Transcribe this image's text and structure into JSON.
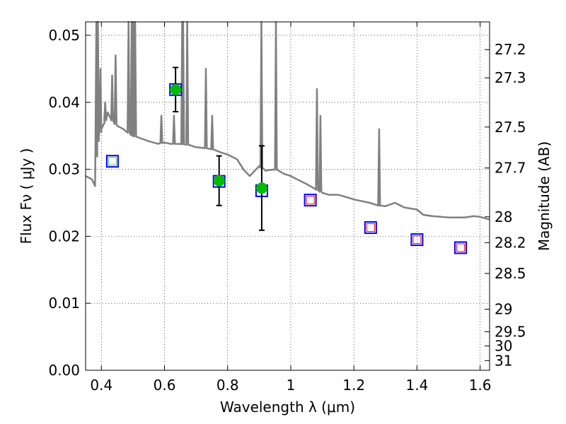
{
  "chart_data": {
    "type": "scatter",
    "xlabel": "Wavelength  λ (μm)",
    "ylabel": "Flux  Fν  ( μJy )",
    "y2label": "Magnitude (AB)",
    "xlim": [
      0.35,
      1.63
    ],
    "ylim": [
      0.0,
      0.052
    ],
    "grid": true,
    "x_ticks": [
      {
        "value": 0.4,
        "label": "0.4"
      },
      {
        "value": 0.6,
        "label": "0.6"
      },
      {
        "value": 0.8,
        "label": "0.8"
      },
      {
        "value": 1.0,
        "label": "1"
      },
      {
        "value": 1.2,
        "label": "1.2"
      },
      {
        "value": 1.4,
        "label": "1.4"
      },
      {
        "value": 1.6,
        "label": "1.6"
      }
    ],
    "y_ticks": [
      {
        "value": 0.0,
        "label": "0.00"
      },
      {
        "value": 0.01,
        "label": "0.01"
      },
      {
        "value": 0.02,
        "label": "0.02"
      },
      {
        "value": 0.03,
        "label": "0.03"
      },
      {
        "value": 0.04,
        "label": "0.04"
      },
      {
        "value": 0.05,
        "label": "0.05"
      }
    ],
    "magnitude_ticks": [
      {
        "mag": 27.2,
        "label": "27.2"
      },
      {
        "mag": 27.3,
        "label": "27.3"
      },
      {
        "mag": 27.5,
        "label": "27.5"
      },
      {
        "mag": 27.7,
        "label": "27.7"
      },
      {
        "mag": 28.0,
        "label": "28"
      },
      {
        "mag": 28.2,
        "label": "28.2"
      },
      {
        "mag": 28.5,
        "label": "28.5"
      },
      {
        "mag": 29.0,
        "label": "29"
      },
      {
        "mag": 29.5,
        "label": "29.5"
      },
      {
        "mag": 30.0,
        "label": "30"
      },
      {
        "mag": 31.0,
        "label": "31"
      }
    ],
    "series": [
      {
        "kind": "model_spectrum",
        "color": "#808080",
        "continuum": [
          [
            0.35,
            0.029
          ],
          [
            0.37,
            0.0285
          ],
          [
            0.38,
            0.0275
          ],
          [
            0.385,
            0.033
          ],
          [
            0.39,
            0.0345
          ],
          [
            0.4,
            0.036
          ],
          [
            0.41,
            0.037
          ],
          [
            0.42,
            0.0385
          ],
          [
            0.43,
            0.0375
          ],
          [
            0.45,
            0.0365
          ],
          [
            0.47,
            0.036
          ],
          [
            0.5,
            0.035
          ],
          [
            0.52,
            0.0347
          ],
          [
            0.55,
            0.0342
          ],
          [
            0.58,
            0.0338
          ],
          [
            0.6,
            0.034
          ],
          [
            0.62,
            0.0338
          ],
          [
            0.65,
            0.0338
          ],
          [
            0.68,
            0.0336
          ],
          [
            0.7,
            0.0333
          ],
          [
            0.72,
            0.0332
          ],
          [
            0.75,
            0.033
          ],
          [
            0.78,
            0.0325
          ],
          [
            0.8,
            0.0322
          ],
          [
            0.83,
            0.0315
          ],
          [
            0.85,
            0.03
          ],
          [
            0.87,
            0.029
          ],
          [
            0.9,
            0.0305
          ],
          [
            0.92,
            0.0298
          ],
          [
            0.95,
            0.03
          ],
          [
            0.98,
            0.0293
          ],
          [
            1.0,
            0.029
          ],
          [
            1.02,
            0.0285
          ],
          [
            1.05,
            0.0278
          ],
          [
            1.08,
            0.027
          ],
          [
            1.1,
            0.0265
          ],
          [
            1.12,
            0.0262
          ],
          [
            1.15,
            0.0262
          ],
          [
            1.18,
            0.0258
          ],
          [
            1.2,
            0.0255
          ],
          [
            1.25,
            0.025
          ],
          [
            1.28,
            0.0246
          ],
          [
            1.3,
            0.0245
          ],
          [
            1.33,
            0.025
          ],
          [
            1.36,
            0.0243
          ],
          [
            1.4,
            0.024
          ],
          [
            1.42,
            0.0232
          ],
          [
            1.45,
            0.023
          ],
          [
            1.5,
            0.0228
          ],
          [
            1.55,
            0.0228
          ],
          [
            1.58,
            0.023
          ],
          [
            1.6,
            0.0229
          ],
          [
            1.63,
            0.0225
          ]
        ],
        "emission_lines": [
          {
            "x": 0.384,
            "peak": 0.056
          },
          {
            "x": 0.389,
            "peak": 0.056
          },
          {
            "x": 0.397,
            "peak": 0.045
          },
          {
            "x": 0.412,
            "peak": 0.04
          },
          {
            "x": 0.434,
            "peak": 0.044
          },
          {
            "x": 0.445,
            "peak": 0.047
          },
          {
            "x": 0.486,
            "peak": 0.056
          },
          {
            "x": 0.496,
            "peak": 0.056
          },
          {
            "x": 0.501,
            "peak": 0.056
          },
          {
            "x": 0.507,
            "peak": 0.056
          },
          {
            "x": 0.59,
            "peak": 0.038
          },
          {
            "x": 0.63,
            "peak": 0.038
          },
          {
            "x": 0.656,
            "peak": 0.056
          },
          {
            "x": 0.659,
            "peak": 0.056
          },
          {
            "x": 0.672,
            "peak": 0.056
          },
          {
            "x": 0.731,
            "peak": 0.045
          },
          {
            "x": 0.751,
            "peak": 0.038
          },
          {
            "x": 0.907,
            "peak": 0.056
          },
          {
            "x": 0.953,
            "peak": 0.056
          },
          {
            "x": 1.083,
            "peak": 0.042
          },
          {
            "x": 1.094,
            "peak": 0.038
          },
          {
            "x": 1.28,
            "peak": 0.036
          }
        ]
      },
      {
        "kind": "model_photometry",
        "marker": "open-square",
        "color": "#0000ff",
        "points": [
          [
            0.435,
            0.0312
          ],
          [
            0.635,
            0.0419
          ],
          [
            0.773,
            0.0282
          ],
          [
            0.908,
            0.0268
          ],
          [
            1.062,
            0.0254
          ],
          [
            1.253,
            0.0213
          ],
          [
            1.4,
            0.0195
          ],
          [
            1.538,
            0.0183
          ]
        ]
      },
      {
        "kind": "upper_limits",
        "marker": "open-square-small",
        "color": "#ff0000",
        "points": [
          [
            1.062,
            0.0254
          ],
          [
            1.253,
            0.0213
          ],
          [
            1.4,
            0.0195
          ],
          [
            1.538,
            0.0183
          ]
        ]
      },
      {
        "kind": "weak_detection",
        "marker": "open-square-small",
        "color": "#4db84d",
        "points": [
          [
            0.435,
            0.0312
          ]
        ]
      },
      {
        "kind": "observed_photometry",
        "marker": "filled-circle",
        "color": "#00bb00",
        "points": [
          {
            "x": 0.635,
            "y": 0.0419,
            "yerr": 0.0033
          },
          {
            "x": 0.773,
            "y": 0.0283,
            "yerr": 0.0037
          },
          {
            "x": 0.908,
            "y": 0.0272,
            "yerr": 0.0063
          }
        ]
      }
    ]
  }
}
